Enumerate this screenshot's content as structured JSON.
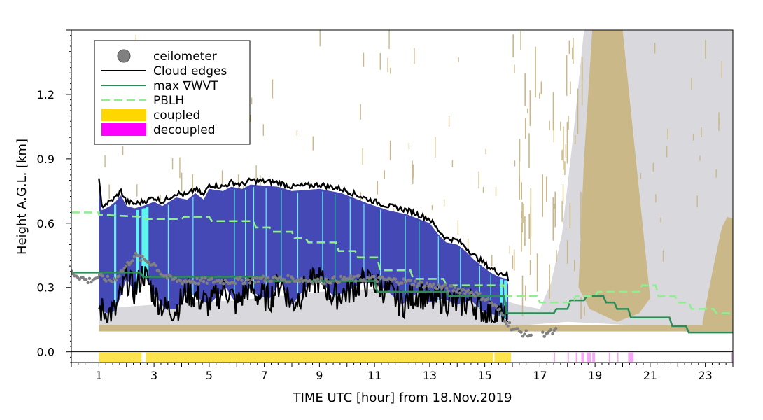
{
  "chart_data": {
    "type": "line",
    "xlabel": "TIME UTC [hour] from 18.Nov.2019",
    "ylabel": "Height A.G.L. [km]",
    "xlim": [
      0,
      24
    ],
    "ylim": [
      -0.05,
      1.5
    ],
    "x_ticks": [
      1,
      3,
      5,
      7,
      9,
      11,
      13,
      15,
      17,
      19,
      21,
      23
    ],
    "y_ticks": [
      0.0,
      0.3,
      0.6,
      0.9,
      1.2
    ],
    "legend_position": "top-left",
    "legend": [
      {
        "label": "ceilometer",
        "style": "marker",
        "color": "#808080"
      },
      {
        "label": "Cloud edges",
        "style": "line",
        "color": "#000000"
      },
      {
        "label": "max ∇WVT",
        "style": "line",
        "color": "#2e8b57"
      },
      {
        "label": "PBLH",
        "style": "dashed",
        "color": "#90ee90"
      },
      {
        "label": "coupled",
        "style": "patch",
        "color": "#ffd700"
      },
      {
        "label": "decoupled",
        "style": "patch",
        "color": "#ff00ff"
      }
    ],
    "series": [
      {
        "name": "PBLH",
        "color": "#90ee90",
        "points": [
          [
            0,
            0.65
          ],
          [
            1,
            0.65
          ],
          [
            1,
            0.64
          ],
          [
            2.5,
            0.63
          ],
          [
            2.6,
            0.62
          ],
          [
            4,
            0.62
          ],
          [
            4.1,
            0.63
          ],
          [
            5,
            0.63
          ],
          [
            5.1,
            0.61
          ],
          [
            6.6,
            0.61
          ],
          [
            6.7,
            0.58
          ],
          [
            7.2,
            0.58
          ],
          [
            7.3,
            0.56
          ],
          [
            8,
            0.56
          ],
          [
            8.1,
            0.53
          ],
          [
            8.5,
            0.53
          ],
          [
            8.6,
            0.51
          ],
          [
            9.6,
            0.51
          ],
          [
            9.7,
            0.47
          ],
          [
            10.3,
            0.47
          ],
          [
            10.4,
            0.44
          ],
          [
            11.1,
            0.44
          ],
          [
            11.2,
            0.38
          ],
          [
            12.3,
            0.38
          ],
          [
            12.4,
            0.34
          ],
          [
            13.5,
            0.34
          ],
          [
            13.6,
            0.31
          ],
          [
            15.7,
            0.31
          ],
          [
            15.8,
            0.26
          ],
          [
            16.9,
            0.26
          ],
          [
            17,
            0.23
          ],
          [
            18.2,
            0.23
          ],
          [
            18.3,
            0.26
          ],
          [
            19,
            0.26
          ],
          [
            19.1,
            0.28
          ],
          [
            20.6,
            0.28
          ],
          [
            20.7,
            0.31
          ],
          [
            21.2,
            0.31
          ],
          [
            21.3,
            0.26
          ],
          [
            21.9,
            0.26
          ],
          [
            22,
            0.23
          ],
          [
            22.4,
            0.23
          ],
          [
            22.5,
            0.2
          ],
          [
            23.3,
            0.2
          ],
          [
            23.4,
            0.18
          ],
          [
            24,
            0.18
          ]
        ]
      },
      {
        "name": "max ∇WVT",
        "color": "#2e8b57",
        "points": [
          [
            0,
            0.37
          ],
          [
            2.5,
            0.37
          ],
          [
            2.6,
            0.35
          ],
          [
            7,
            0.35
          ],
          [
            7.1,
            0.33
          ],
          [
            11,
            0.33
          ],
          [
            11.1,
            0.28
          ],
          [
            13.6,
            0.28
          ],
          [
            13.7,
            0.26
          ],
          [
            15.7,
            0.26
          ],
          [
            15.8,
            0.18
          ],
          [
            17.5,
            0.18
          ],
          [
            17.6,
            0.2
          ],
          [
            18,
            0.2
          ],
          [
            18.1,
            0.24
          ],
          [
            18.6,
            0.24
          ],
          [
            18.7,
            0.26
          ],
          [
            19.3,
            0.26
          ],
          [
            19.4,
            0.23
          ],
          [
            19.7,
            0.23
          ],
          [
            19.8,
            0.2
          ],
          [
            20.2,
            0.2
          ],
          [
            20.3,
            0.16
          ],
          [
            21.7,
            0.16
          ],
          [
            21.8,
            0.12
          ],
          [
            22.3,
            0.12
          ],
          [
            22.4,
            0.09
          ],
          [
            24,
            0.09
          ]
        ]
      },
      {
        "name": "Cloud top",
        "color": "#000000",
        "points": [
          [
            1,
            0.8
          ],
          [
            1.1,
            0.68
          ],
          [
            1.4,
            0.7
          ],
          [
            1.6,
            0.72
          ],
          [
            1.8,
            0.75
          ],
          [
            2,
            0.7
          ],
          [
            2.3,
            0.69
          ],
          [
            2.6,
            0.7
          ],
          [
            3,
            0.72
          ],
          [
            3.3,
            0.7
          ],
          [
            3.8,
            0.74
          ],
          [
            4.2,
            0.73
          ],
          [
            4.5,
            0.76
          ],
          [
            4.8,
            0.73
          ],
          [
            5,
            0.78
          ],
          [
            5.5,
            0.77
          ],
          [
            5.8,
            0.79
          ],
          [
            6.2,
            0.78
          ],
          [
            6.5,
            0.8
          ],
          [
            7.5,
            0.79
          ],
          [
            8,
            0.77
          ],
          [
            9,
            0.78
          ],
          [
            9.8,
            0.76
          ],
          [
            10.2,
            0.74
          ],
          [
            10.8,
            0.71
          ],
          [
            11.5,
            0.68
          ],
          [
            12.2,
            0.66
          ],
          [
            13,
            0.62
          ],
          [
            13.3,
            0.57
          ],
          [
            13.6,
            0.53
          ],
          [
            14,
            0.52
          ],
          [
            14.3,
            0.49
          ],
          [
            14.6,
            0.45
          ],
          [
            14.9,
            0.42
          ],
          [
            15.2,
            0.39
          ],
          [
            15.5,
            0.37
          ],
          [
            15.8,
            0.36
          ],
          [
            15.9,
            0.3
          ]
        ]
      },
      {
        "name": "Cloud base",
        "color": "#000000",
        "points": [
          [
            1,
            0.2
          ],
          [
            1.3,
            0.18
          ],
          [
            1.6,
            0.19
          ],
          [
            2,
            0.34
          ],
          [
            2.3,
            0.28
          ],
          [
            2.6,
            0.37
          ],
          [
            3,
            0.27
          ],
          [
            3.4,
            0.2
          ],
          [
            3.8,
            0.2
          ],
          [
            4.2,
            0.28
          ],
          [
            4.6,
            0.25
          ],
          [
            5,
            0.22
          ],
          [
            5.6,
            0.3
          ],
          [
            6,
            0.22
          ],
          [
            6.4,
            0.3
          ],
          [
            6.8,
            0.26
          ],
          [
            7.2,
            0.25
          ],
          [
            7.6,
            0.33
          ],
          [
            8,
            0.22
          ],
          [
            8.5,
            0.3
          ],
          [
            9,
            0.34
          ],
          [
            9.5,
            0.26
          ],
          [
            10,
            0.28
          ],
          [
            10.5,
            0.32
          ],
          [
            11,
            0.32
          ],
          [
            11.5,
            0.28
          ],
          [
            12,
            0.22
          ],
          [
            12.6,
            0.28
          ],
          [
            13,
            0.23
          ],
          [
            13.5,
            0.25
          ],
          [
            14,
            0.22
          ],
          [
            14.5,
            0.24
          ],
          [
            15,
            0.18
          ],
          [
            15.5,
            0.17
          ],
          [
            15.8,
            0.15
          ]
        ]
      },
      {
        "name": "ceilometer",
        "color": "#808080",
        "points": [
          [
            0,
            0.37
          ],
          [
            0.3,
            0.35
          ],
          [
            0.6,
            0.33
          ],
          [
            1,
            0.35
          ],
          [
            1.5,
            0.33
          ],
          [
            2,
            0.4
          ],
          [
            2.3,
            0.45
          ],
          [
            2.6,
            0.43
          ],
          [
            3,
            0.41
          ],
          [
            3.3,
            0.36
          ],
          [
            3.6,
            0.34
          ],
          [
            4,
            0.33
          ],
          [
            5,
            0.33
          ],
          [
            6,
            0.33
          ],
          [
            7,
            0.34
          ],
          [
            8,
            0.34
          ],
          [
            9,
            0.33
          ],
          [
            10,
            0.34
          ],
          [
            11,
            0.34
          ],
          [
            12,
            0.33
          ],
          [
            13,
            0.31
          ],
          [
            13.5,
            0.3
          ],
          [
            14,
            0.29
          ],
          [
            14.5,
            0.28
          ],
          [
            15,
            0.25
          ],
          [
            15.3,
            0.22
          ],
          [
            15.6,
            0.18
          ],
          [
            15.8,
            0.14
          ],
          [
            16,
            0.11
          ],
          [
            16.3,
            0.09
          ],
          [
            16.6,
            0.08
          ],
          [
            17.1,
            0.08
          ],
          [
            17.2,
            0.09
          ],
          [
            17.5,
            0.09
          ],
          [
            17.6,
            0.1
          ]
        ]
      }
    ],
    "cloud_fill_color": "#4549b5",
    "cloud_highlight_color": "#5ff5ef",
    "fog_color": "#cab888",
    "background_cloud_color": "#d9d9dd",
    "coupled_intervals": [
      [
        1.0,
        2.55
      ],
      [
        2.7,
        15.3
      ],
      [
        15.35,
        15.95
      ]
    ],
    "decoupled_intervals": [
      [
        17.5,
        17.55
      ],
      [
        18.0,
        18.05
      ],
      [
        18.3,
        18.35
      ],
      [
        18.5,
        18.6
      ],
      [
        18.7,
        18.85
      ],
      [
        18.9,
        19.0
      ],
      [
        19.5,
        19.55
      ],
      [
        19.8,
        19.85
      ],
      [
        20.2,
        20.4
      ],
      [
        23.95,
        24.0
      ]
    ]
  }
}
